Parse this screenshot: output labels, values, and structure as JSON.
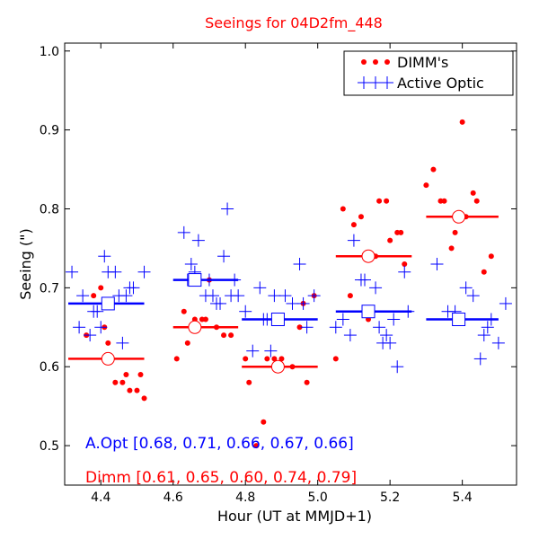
{
  "chart_data": {
    "type": "scatter",
    "title": "Seeings for 04D2fm_448",
    "xlabel": "Hour (UT at MMJD+1)",
    "ylabel": "Seeing (\")",
    "xlim": [
      4.3,
      5.55
    ],
    "ylim": [
      0.45,
      1.01
    ],
    "xticks": [
      4.4,
      4.6,
      4.8,
      5.0,
      5.2,
      5.4
    ],
    "xtick_labels": [
      "4.4",
      "4.6",
      "4.8",
      "5.0",
      "5.2",
      "5.4"
    ],
    "yticks": [
      0.5,
      0.6,
      0.7,
      0.8,
      0.9,
      1.0
    ],
    "ytick_labels": [
      "0.5",
      "0.6",
      "0.7",
      "0.8",
      "0.9",
      "1.0"
    ],
    "colors": {
      "dimm": "#ff0000",
      "aopt": "#0000ff"
    },
    "legend": {
      "position": "top-right",
      "entries": [
        {
          "label": "DIMM's",
          "marker": "dots",
          "color": "#ff0000"
        },
        {
          "label": "Active Optic",
          "marker": "plus",
          "color": "#0000ff"
        }
      ]
    },
    "series": [
      {
        "name": "DIMM's",
        "marker": "dot",
        "points": [
          [
            4.36,
            0.64
          ],
          [
            4.38,
            0.69
          ],
          [
            4.4,
            0.7
          ],
          [
            4.41,
            0.65
          ],
          [
            4.42,
            0.63
          ],
          [
            4.44,
            0.58
          ],
          [
            4.46,
            0.58
          ],
          [
            4.47,
            0.59
          ],
          [
            4.48,
            0.57
          ],
          [
            4.5,
            0.57
          ],
          [
            4.51,
            0.59
          ],
          [
            4.52,
            0.56
          ],
          [
            4.61,
            0.61
          ],
          [
            4.63,
            0.67
          ],
          [
            4.64,
            0.63
          ],
          [
            4.66,
            0.66
          ],
          [
            4.68,
            0.66
          ],
          [
            4.69,
            0.66
          ],
          [
            4.7,
            0.71
          ],
          [
            4.72,
            0.65
          ],
          [
            4.74,
            0.64
          ],
          [
            4.76,
            0.64
          ],
          [
            4.8,
            0.61
          ],
          [
            4.81,
            0.58
          ],
          [
            4.83,
            0.5
          ],
          [
            4.85,
            0.53
          ],
          [
            4.86,
            0.61
          ],
          [
            4.88,
            0.61
          ],
          [
            4.9,
            0.61
          ],
          [
            4.93,
            0.6
          ],
          [
            4.95,
            0.65
          ],
          [
            4.96,
            0.68
          ],
          [
            4.97,
            0.58
          ],
          [
            4.99,
            0.69
          ],
          [
            5.05,
            0.61
          ],
          [
            5.07,
            0.8
          ],
          [
            5.09,
            0.69
          ],
          [
            5.1,
            0.78
          ],
          [
            5.12,
            0.79
          ],
          [
            5.14,
            0.66
          ],
          [
            5.16,
            0.74
          ],
          [
            5.17,
            0.81
          ],
          [
            5.19,
            0.81
          ],
          [
            5.2,
            0.76
          ],
          [
            5.22,
            0.77
          ],
          [
            5.23,
            0.77
          ],
          [
            5.24,
            0.73
          ],
          [
            5.3,
            0.83
          ],
          [
            5.32,
            0.85
          ],
          [
            5.34,
            0.81
          ],
          [
            5.35,
            0.81
          ],
          [
            5.37,
            0.75
          ],
          [
            5.38,
            0.77
          ],
          [
            5.4,
            0.91
          ],
          [
            5.41,
            0.79
          ],
          [
            5.43,
            0.82
          ],
          [
            5.44,
            0.81
          ],
          [
            5.46,
            0.72
          ],
          [
            5.48,
            0.74
          ]
        ]
      },
      {
        "name": "Active Optic",
        "marker": "plus",
        "points": [
          [
            4.32,
            0.72
          ],
          [
            4.34,
            0.65
          ],
          [
            4.35,
            0.69
          ],
          [
            4.37,
            0.64
          ],
          [
            4.38,
            0.67
          ],
          [
            4.39,
            0.67
          ],
          [
            4.4,
            0.65
          ],
          [
            4.41,
            0.74
          ],
          [
            4.42,
            0.72
          ],
          [
            4.44,
            0.72
          ],
          [
            4.45,
            0.69
          ],
          [
            4.46,
            0.63
          ],
          [
            4.47,
            0.69
          ],
          [
            4.48,
            0.7
          ],
          [
            4.49,
            0.7
          ],
          [
            4.52,
            0.72
          ],
          [
            4.63,
            0.77
          ],
          [
            4.64,
            0.71
          ],
          [
            4.65,
            0.73
          ],
          [
            4.66,
            0.72
          ],
          [
            4.67,
            0.76
          ],
          [
            4.69,
            0.69
          ],
          [
            4.7,
            0.71
          ],
          [
            4.71,
            0.69
          ],
          [
            4.72,
            0.68
          ],
          [
            4.73,
            0.68
          ],
          [
            4.74,
            0.74
          ],
          [
            4.75,
            0.8
          ],
          [
            4.76,
            0.69
          ],
          [
            4.77,
            0.71
          ],
          [
            4.78,
            0.69
          ],
          [
            4.8,
            0.67
          ],
          [
            4.82,
            0.62
          ],
          [
            4.84,
            0.7
          ],
          [
            4.85,
            0.66
          ],
          [
            4.86,
            0.66
          ],
          [
            4.87,
            0.62
          ],
          [
            4.88,
            0.69
          ],
          [
            4.9,
            0.66
          ],
          [
            4.91,
            0.69
          ],
          [
            4.93,
            0.68
          ],
          [
            4.95,
            0.73
          ],
          [
            4.96,
            0.68
          ],
          [
            4.97,
            0.65
          ],
          [
            4.99,
            0.69
          ],
          [
            5.05,
            0.65
          ],
          [
            5.07,
            0.66
          ],
          [
            5.09,
            0.64
          ],
          [
            5.1,
            0.76
          ],
          [
            5.12,
            0.71
          ],
          [
            5.13,
            0.71
          ],
          [
            5.15,
            0.67
          ],
          [
            5.16,
            0.7
          ],
          [
            5.17,
            0.65
          ],
          [
            5.18,
            0.63
          ],
          [
            5.19,
            0.64
          ],
          [
            5.2,
            0.63
          ],
          [
            5.21,
            0.66
          ],
          [
            5.22,
            0.6
          ],
          [
            5.24,
            0.72
          ],
          [
            5.25,
            0.67
          ],
          [
            5.33,
            0.73
          ],
          [
            5.36,
            0.67
          ],
          [
            5.38,
            0.67
          ],
          [
            5.41,
            0.7
          ],
          [
            5.43,
            0.69
          ],
          [
            5.45,
            0.61
          ],
          [
            5.46,
            0.64
          ],
          [
            5.47,
            0.65
          ],
          [
            5.48,
            0.66
          ],
          [
            5.5,
            0.63
          ],
          [
            5.52,
            0.68
          ]
        ]
      }
    ],
    "bin_means": {
      "aopt": [
        {
          "x": 4.42,
          "x_range": [
            4.31,
            4.52
          ],
          "y": 0.68
        },
        {
          "x": 4.66,
          "x_range": [
            4.6,
            4.78
          ],
          "y": 0.71
        },
        {
          "x": 4.89,
          "x_range": [
            4.79,
            5.0
          ],
          "y": 0.66
        },
        {
          "x": 5.14,
          "x_range": [
            5.05,
            5.26
          ],
          "y": 0.67
        },
        {
          "x": 5.39,
          "x_range": [
            5.3,
            5.5
          ],
          "y": 0.66
        }
      ],
      "dimm": [
        {
          "x": 4.42,
          "x_range": [
            4.31,
            4.52
          ],
          "y": 0.61
        },
        {
          "x": 4.66,
          "x_range": [
            4.6,
            4.78
          ],
          "y": 0.65
        },
        {
          "x": 4.89,
          "x_range": [
            4.79,
            5.0
          ],
          "y": 0.6
        },
        {
          "x": 5.14,
          "x_range": [
            5.05,
            5.26
          ],
          "y": 0.74
        },
        {
          "x": 5.39,
          "x_range": [
            5.3,
            5.5
          ],
          "y": 0.79
        }
      ]
    },
    "annotations": [
      {
        "name": "aopt-annotation",
        "text": "A.Opt [0.68, 0.71, 0.66, 0.67, 0.66]",
        "color": "#0000ff"
      },
      {
        "name": "dimm-annotation",
        "text": "Dimm [0.61, 0.65, 0.60, 0.74, 0.79]",
        "color": "#ff0000"
      }
    ]
  }
}
